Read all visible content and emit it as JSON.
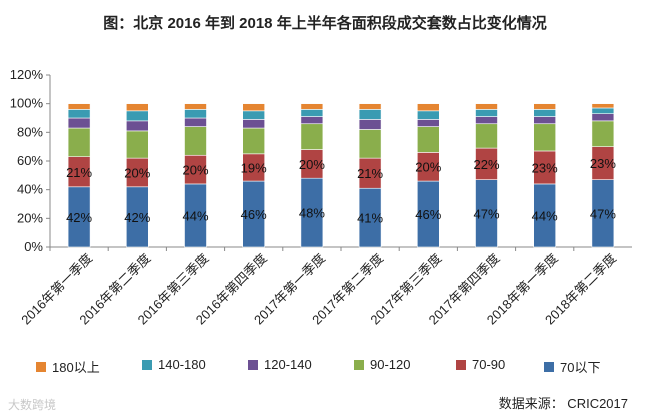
{
  "colors": {
    "70以下": "#3d6ea6",
    "70-90": "#b04443",
    "90-120": "#8aae4c",
    "120-140": "#6c5093",
    "140-180": "#3a9bb2",
    "180以上": "#e58531"
  },
  "chart_data": {
    "type": "bar",
    "stacked": true,
    "title": "图：北京 2016 年到 2018 年上半年各面积段成交套数占比变化情况",
    "categories": [
      "2016年第一季度",
      "2016年第二季度",
      "2016年第三季度",
      "2016年第四季度",
      "2017年第一季度",
      "2017年第二季度",
      "2017年第三季度",
      "2017年第四季度",
      "2018年第一季度",
      "2018年第二季度"
    ],
    "series": [
      {
        "name": "70以下",
        "values": [
          42,
          42,
          44,
          46,
          48,
          41,
          46,
          47,
          44,
          47
        ],
        "labels": [
          "42%",
          "42%",
          "44%",
          "46%",
          "48%",
          "41%",
          "46%",
          "47%",
          "44%",
          "47%"
        ]
      },
      {
        "name": "70-90",
        "values": [
          21,
          20,
          20,
          19,
          20,
          21,
          20,
          22,
          23,
          23
        ],
        "labels": [
          "21%",
          "20%",
          "20%",
          "19%",
          "20%",
          "21%",
          "20%",
          "22%",
          "23%",
          "23%"
        ]
      },
      {
        "name": "90-120",
        "values": [
          20,
          19,
          20,
          18,
          18,
          20,
          18,
          17,
          19,
          18
        ]
      },
      {
        "name": "120-140",
        "values": [
          7,
          7,
          6,
          6,
          5,
          7,
          5,
          5,
          5,
          5
        ]
      },
      {
        "name": "140-180",
        "values": [
          6,
          7,
          6,
          6,
          5,
          7,
          6,
          5,
          5,
          4
        ]
      },
      {
        "name": "180以上",
        "values": [
          4,
          5,
          4,
          5,
          4,
          4,
          5,
          4,
          4,
          3
        ]
      }
    ],
    "legend_order": [
      "180以上",
      "140-180",
      "120-140",
      "90-120",
      "70-90",
      "70以下"
    ],
    "ylim": [
      0,
      120
    ],
    "yticks": [
      0,
      20,
      40,
      60,
      80,
      100,
      120
    ],
    "ytick_labels": [
      "0%",
      "20%",
      "40%",
      "60%",
      "80%",
      "100%",
      "120%"
    ],
    "xlabel": "",
    "ylabel": "",
    "legend_position": "bottom"
  },
  "footer": {
    "source": "数据来源： CRIC2017",
    "watermark": "大数跨境"
  }
}
